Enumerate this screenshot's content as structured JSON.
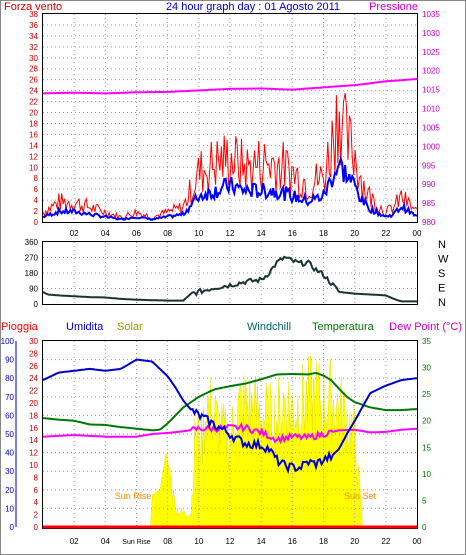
{
  "chart_data": [
    {
      "type": "line",
      "title": "24 hour graph day : 01 Agosto 2011",
      "left_axis_label": "Forza vento",
      "right_axis_label": "Pressione",
      "left_ticks": [
        "0",
        "2",
        "4",
        "6",
        "8",
        "10",
        "12",
        "14",
        "16",
        "18",
        "20",
        "22",
        "24",
        "26",
        "28",
        "30",
        "32",
        "34",
        "36",
        "38"
      ],
      "right_ticks": [
        "980",
        "985",
        "990",
        "995",
        "1000",
        "1005",
        "1010",
        "1015",
        "1020",
        "1025",
        "1030",
        "1035"
      ],
      "x_ticks": [
        "02",
        "04",
        "06",
        "08",
        "10",
        "12",
        "14",
        "16",
        "18",
        "20",
        "22",
        "00"
      ],
      "colors": {
        "wind_gust": "#ff0000",
        "wind_speed": "#0000ff",
        "pressure": "#ff00ff",
        "left_axis": "#cc0000",
        "right_axis": "#cc00cc"
      },
      "pressure": {
        "x": [
          0,
          2,
          4,
          6,
          8,
          10,
          12,
          14,
          16,
          18,
          20,
          22,
          24
        ],
        "values": [
          1014.0,
          1014.2,
          1014.0,
          1014.3,
          1014.4,
          1014.8,
          1015.2,
          1015.3,
          1015.0,
          1015.6,
          1016.2,
          1017.2,
          1017.8
        ]
      },
      "wind_gust_profile": {
        "x": [
          0,
          1,
          2,
          3,
          4,
          5,
          6,
          7,
          8,
          9,
          10,
          11,
          12,
          13,
          14,
          15,
          16,
          17,
          18,
          18.6,
          19,
          19.5,
          20,
          20.5,
          21,
          22,
          22.5,
          23,
          24
        ],
        "values": [
          2,
          4,
          4,
          3,
          2,
          1,
          2,
          1,
          2,
          3,
          10,
          12,
          13,
          11,
          12,
          12,
          10,
          8,
          9,
          17,
          24,
          16,
          14,
          8,
          5,
          2,
          3,
          5,
          2
        ]
      },
      "wind_speed_profile": {
        "x": [
          0,
          1,
          2,
          3,
          4,
          5,
          6,
          7,
          8,
          9,
          10,
          11,
          12,
          13,
          14,
          15,
          16,
          17,
          18,
          18.6,
          19,
          19.5,
          20,
          20.5,
          21,
          22,
          22.5,
          23,
          24
        ],
        "values": [
          1,
          2,
          2,
          1.5,
          1,
          0.5,
          1,
          0.5,
          1,
          1.5,
          5,
          6,
          7,
          6,
          6,
          6,
          5,
          4,
          5,
          9,
          11,
          9,
          7,
          4,
          2.5,
          1,
          1.5,
          3,
          1
        ]
      }
    },
    {
      "type": "line",
      "title": "",
      "right_ticks": [
        "N",
        "W",
        "S",
        "E",
        "N"
      ],
      "left_ticks": [
        "0",
        "90",
        "180",
        "270",
        "360"
      ],
      "x_ticks": [
        "02",
        "04",
        "06",
        "08",
        "10",
        "12",
        "14",
        "16",
        "18",
        "20",
        "22",
        "00"
      ],
      "color": "#1a3333",
      "x": [
        0,
        0.3,
        1,
        2,
        3,
        4,
        5,
        6,
        7,
        8,
        9,
        9.5,
        10,
        11,
        12,
        13,
        14,
        14.5,
        15,
        15.5,
        16,
        16.5,
        17,
        17.5,
        18,
        19,
        20,
        21,
        22,
        22.5,
        23,
        24
      ],
      "values": [
        70,
        55,
        50,
        45,
        40,
        38,
        30,
        25,
        22,
        20,
        20,
        60,
        70,
        95,
        110,
        130,
        140,
        180,
        240,
        270,
        250,
        235,
        240,
        200,
        170,
        70,
        60,
        55,
        50,
        30,
        15,
        15
      ]
    },
    {
      "type": "line",
      "title": "",
      "headers": {
        "rain": "Pioggia",
        "humidity": "Umidita",
        "solar": "Solar",
        "windchill": "Windchill",
        "temperature": "Temperatura",
        "dewpoint": "Dew Point (°C)"
      },
      "left_ticks_rain": [
        "0",
        "2",
        "4",
        "6",
        "8",
        "10",
        "12",
        "14",
        "16",
        "18",
        "20",
        "22",
        "24",
        "26",
        "28",
        "30"
      ],
      "left_ticks_humidity": [
        "0",
        "10",
        "20",
        "30",
        "40",
        "50",
        "60",
        "70",
        "80",
        "90",
        "100"
      ],
      "right_ticks": [
        "0",
        "5",
        "10",
        "15",
        "20",
        "25",
        "30",
        "35"
      ],
      "x_ticks": [
        "02",
        "04",
        "Sun Rise",
        "08",
        "10",
        "12",
        "14",
        "16",
        "18",
        "20",
        "22",
        "00"
      ],
      "sun_rise_label": "Sun Rise",
      "sun_set_label": "Sun Set",
      "colors": {
        "rain": "#ff0000",
        "humidity": "#0000cc",
        "solar": "#ffff00",
        "temperature": "#007700",
        "dewpoint": "#ff00ff",
        "header_rain": "#ff0000",
        "header_humidity": "#0000cc",
        "header_solar": "#999900",
        "header_windchill": "#006666",
        "header_temperature": "#007700",
        "header_dewpoint": "#cc00cc",
        "sun_label": "#ff8800"
      },
      "humidity": {
        "x": [
          0,
          1,
          2,
          3,
          4,
          5,
          6,
          7,
          8,
          8.5,
          9,
          9.5,
          10,
          11,
          12,
          12.5,
          13,
          14,
          14.5,
          15,
          15.5,
          16,
          16.5,
          17,
          17.5,
          18,
          18.5,
          19,
          19.5,
          20,
          21,
          22,
          23,
          24
        ],
        "values": [
          79,
          83,
          84,
          85,
          84,
          85,
          90,
          89,
          81,
          75,
          68,
          63,
          60,
          55,
          50,
          47,
          45,
          44,
          42,
          36,
          33,
          32,
          32,
          35,
          34,
          36,
          38,
          42,
          50,
          57,
          72,
          76,
          79,
          80
        ]
      },
      "temperature": {
        "x": [
          0,
          1,
          2,
          3,
          4,
          5,
          6,
          7,
          7.5,
          8,
          9,
          10,
          11,
          12,
          13,
          14,
          15,
          16,
          17,
          17.5,
          18,
          18.5,
          19,
          19.5,
          20,
          21,
          22,
          23,
          24
        ],
        "values": [
          20.5,
          20.2,
          20.0,
          19.3,
          19.2,
          18.8,
          18.5,
          18.2,
          18.3,
          19.5,
          22.5,
          24.5,
          25.9,
          26.5,
          27.0,
          27.8,
          28.7,
          28.8,
          28.7,
          29.0,
          28.5,
          27.6,
          26.0,
          24.5,
          23.5,
          22.5,
          22.0,
          22.0,
          22.2
        ]
      },
      "dewpoint": {
        "x": [
          0,
          2,
          4,
          6,
          7,
          8,
          9,
          10,
          11,
          12,
          13,
          14,
          15,
          16,
          17,
          18,
          19,
          20,
          21,
          22,
          23,
          24
        ],
        "values": [
          17.0,
          17.3,
          17.0,
          17.0,
          17.5,
          17.7,
          18.0,
          18.5,
          18.5,
          18.7,
          18.7,
          17.8,
          16.5,
          17.0,
          16.8,
          17.5,
          18.2,
          18.3,
          17.8,
          17.9,
          18.3,
          18.5
        ]
      },
      "solar_profile": {
        "x": [
          6.9,
          7.0,
          7.5,
          7.9,
          8.2,
          8.5,
          9.0,
          9.5,
          9.8,
          10.2,
          10.5,
          11,
          11.5,
          12,
          12.5,
          13,
          13.5,
          14,
          14.5,
          15,
          15.5,
          16,
          16.5,
          17,
          17.5,
          18,
          18.5,
          19,
          19.5,
          20,
          20.4,
          20.5
        ],
        "values": [
          0,
          6,
          7,
          14,
          11,
          4,
          3,
          3,
          22,
          19,
          27,
          24,
          21,
          19,
          26,
          27,
          26,
          25,
          24,
          24,
          28,
          26,
          27,
          28,
          29,
          27,
          28,
          26,
          24,
          20,
          5,
          0
        ]
      },
      "rain_total": 0
    }
  ]
}
